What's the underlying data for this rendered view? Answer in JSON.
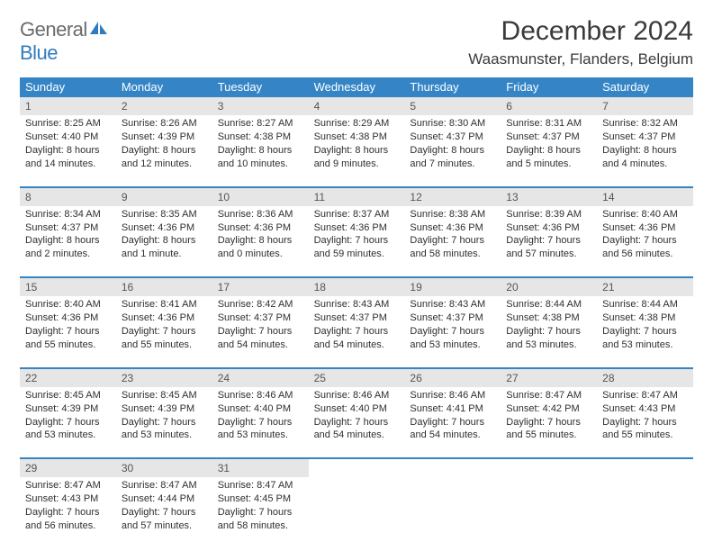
{
  "brand": {
    "text1": "General",
    "text2": "Blue"
  },
  "title": "December 2024",
  "location": "Waasmunster, Flanders, Belgium",
  "colors": {
    "header_bg": "#3585c6",
    "header_text": "#ffffff",
    "daynum_bg": "#e6e6e6",
    "body_text": "#2f2f2f",
    "brand_gray": "#6b6b6b",
    "brand_blue": "#2f7bbf"
  },
  "day_names": [
    "Sunday",
    "Monday",
    "Tuesday",
    "Wednesday",
    "Thursday",
    "Friday",
    "Saturday"
  ],
  "weeks": [
    [
      {
        "n": "1",
        "sunrise": "Sunrise: 8:25 AM",
        "sunset": "Sunset: 4:40 PM",
        "daylight": "Daylight: 8 hours and 14 minutes."
      },
      {
        "n": "2",
        "sunrise": "Sunrise: 8:26 AM",
        "sunset": "Sunset: 4:39 PM",
        "daylight": "Daylight: 8 hours and 12 minutes."
      },
      {
        "n": "3",
        "sunrise": "Sunrise: 8:27 AM",
        "sunset": "Sunset: 4:38 PM",
        "daylight": "Daylight: 8 hours and 10 minutes."
      },
      {
        "n": "4",
        "sunrise": "Sunrise: 8:29 AM",
        "sunset": "Sunset: 4:38 PM",
        "daylight": "Daylight: 8 hours and 9 minutes."
      },
      {
        "n": "5",
        "sunrise": "Sunrise: 8:30 AM",
        "sunset": "Sunset: 4:37 PM",
        "daylight": "Daylight: 8 hours and 7 minutes."
      },
      {
        "n": "6",
        "sunrise": "Sunrise: 8:31 AM",
        "sunset": "Sunset: 4:37 PM",
        "daylight": "Daylight: 8 hours and 5 minutes."
      },
      {
        "n": "7",
        "sunrise": "Sunrise: 8:32 AM",
        "sunset": "Sunset: 4:37 PM",
        "daylight": "Daylight: 8 hours and 4 minutes."
      }
    ],
    [
      {
        "n": "8",
        "sunrise": "Sunrise: 8:34 AM",
        "sunset": "Sunset: 4:37 PM",
        "daylight": "Daylight: 8 hours and 2 minutes."
      },
      {
        "n": "9",
        "sunrise": "Sunrise: 8:35 AM",
        "sunset": "Sunset: 4:36 PM",
        "daylight": "Daylight: 8 hours and 1 minute."
      },
      {
        "n": "10",
        "sunrise": "Sunrise: 8:36 AM",
        "sunset": "Sunset: 4:36 PM",
        "daylight": "Daylight: 8 hours and 0 minutes."
      },
      {
        "n": "11",
        "sunrise": "Sunrise: 8:37 AM",
        "sunset": "Sunset: 4:36 PM",
        "daylight": "Daylight: 7 hours and 59 minutes."
      },
      {
        "n": "12",
        "sunrise": "Sunrise: 8:38 AM",
        "sunset": "Sunset: 4:36 PM",
        "daylight": "Daylight: 7 hours and 58 minutes."
      },
      {
        "n": "13",
        "sunrise": "Sunrise: 8:39 AM",
        "sunset": "Sunset: 4:36 PM",
        "daylight": "Daylight: 7 hours and 57 minutes."
      },
      {
        "n": "14",
        "sunrise": "Sunrise: 8:40 AM",
        "sunset": "Sunset: 4:36 PM",
        "daylight": "Daylight: 7 hours and 56 minutes."
      }
    ],
    [
      {
        "n": "15",
        "sunrise": "Sunrise: 8:40 AM",
        "sunset": "Sunset: 4:36 PM",
        "daylight": "Daylight: 7 hours and 55 minutes."
      },
      {
        "n": "16",
        "sunrise": "Sunrise: 8:41 AM",
        "sunset": "Sunset: 4:36 PM",
        "daylight": "Daylight: 7 hours and 55 minutes."
      },
      {
        "n": "17",
        "sunrise": "Sunrise: 8:42 AM",
        "sunset": "Sunset: 4:37 PM",
        "daylight": "Daylight: 7 hours and 54 minutes."
      },
      {
        "n": "18",
        "sunrise": "Sunrise: 8:43 AM",
        "sunset": "Sunset: 4:37 PM",
        "daylight": "Daylight: 7 hours and 54 minutes."
      },
      {
        "n": "19",
        "sunrise": "Sunrise: 8:43 AM",
        "sunset": "Sunset: 4:37 PM",
        "daylight": "Daylight: 7 hours and 53 minutes."
      },
      {
        "n": "20",
        "sunrise": "Sunrise: 8:44 AM",
        "sunset": "Sunset: 4:38 PM",
        "daylight": "Daylight: 7 hours and 53 minutes."
      },
      {
        "n": "21",
        "sunrise": "Sunrise: 8:44 AM",
        "sunset": "Sunset: 4:38 PM",
        "daylight": "Daylight: 7 hours and 53 minutes."
      }
    ],
    [
      {
        "n": "22",
        "sunrise": "Sunrise: 8:45 AM",
        "sunset": "Sunset: 4:39 PM",
        "daylight": "Daylight: 7 hours and 53 minutes."
      },
      {
        "n": "23",
        "sunrise": "Sunrise: 8:45 AM",
        "sunset": "Sunset: 4:39 PM",
        "daylight": "Daylight: 7 hours and 53 minutes."
      },
      {
        "n": "24",
        "sunrise": "Sunrise: 8:46 AM",
        "sunset": "Sunset: 4:40 PM",
        "daylight": "Daylight: 7 hours and 53 minutes."
      },
      {
        "n": "25",
        "sunrise": "Sunrise: 8:46 AM",
        "sunset": "Sunset: 4:40 PM",
        "daylight": "Daylight: 7 hours and 54 minutes."
      },
      {
        "n": "26",
        "sunrise": "Sunrise: 8:46 AM",
        "sunset": "Sunset: 4:41 PM",
        "daylight": "Daylight: 7 hours and 54 minutes."
      },
      {
        "n": "27",
        "sunrise": "Sunrise: 8:47 AM",
        "sunset": "Sunset: 4:42 PM",
        "daylight": "Daylight: 7 hours and 55 minutes."
      },
      {
        "n": "28",
        "sunrise": "Sunrise: 8:47 AM",
        "sunset": "Sunset: 4:43 PM",
        "daylight": "Daylight: 7 hours and 55 minutes."
      }
    ],
    [
      {
        "n": "29",
        "sunrise": "Sunrise: 8:47 AM",
        "sunset": "Sunset: 4:43 PM",
        "daylight": "Daylight: 7 hours and 56 minutes."
      },
      {
        "n": "30",
        "sunrise": "Sunrise: 8:47 AM",
        "sunset": "Sunset: 4:44 PM",
        "daylight": "Daylight: 7 hours and 57 minutes."
      },
      {
        "n": "31",
        "sunrise": "Sunrise: 8:47 AM",
        "sunset": "Sunset: 4:45 PM",
        "daylight": "Daylight: 7 hours and 58 minutes."
      },
      null,
      null,
      null,
      null
    ]
  ]
}
